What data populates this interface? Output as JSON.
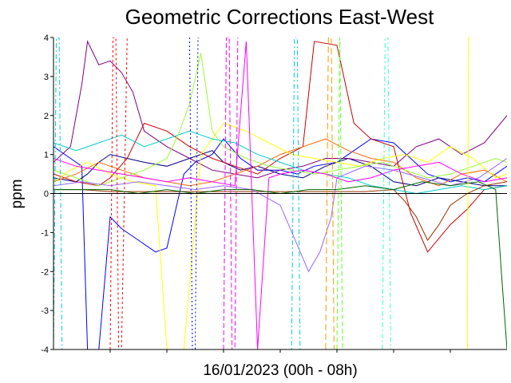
{
  "chart_data": {
    "type": "line",
    "title": "Geometric Corrections East-West",
    "xlabel": "16/01/2023 (00h - 08h)",
    "ylabel": "ppm",
    "ylim": [
      -4,
      4
    ],
    "xlim": [
      0,
      8
    ],
    "yticks": [
      "4",
      "3",
      "2",
      "1",
      "0",
      "-1",
      "-2",
      "-3",
      "-4"
    ],
    "ytick_values": [
      4,
      3,
      2,
      1,
      0,
      -1,
      -2,
      -3,
      -4
    ],
    "xticks_minor": [
      1,
      2,
      3,
      4,
      5,
      6,
      7
    ],
    "grid": false,
    "legend": "none",
    "series": [
      {
        "color": "#0000ff",
        "dash": "",
        "x": [
          0.0,
          0.3,
          0.5,
          0.6,
          0.8,
          1.0,
          1.2,
          1.5,
          1.8,
          2.0,
          2.3,
          2.5,
          2.8,
          3.0,
          3.3,
          3.6,
          4.0,
          4.3,
          4.6,
          5.0,
          5.3,
          5.6,
          6.0,
          6.3,
          6.6,
          7.0,
          7.3,
          7.6,
          8.0
        ],
        "y": [
          1.2,
          0.9,
          0.7,
          -4,
          -4,
          -0.6,
          -0.9,
          -1.2,
          -1.5,
          -1.4,
          0.5,
          0.8,
          1.0,
          1.4,
          0.9,
          0.6,
          0.6,
          0.5,
          0.7,
          0.8,
          1.1,
          1.4,
          1.3,
          0.9,
          0.5,
          0.3,
          0.4,
          0.3,
          0.7
        ]
      },
      {
        "color": "#000080",
        "dash": "",
        "x": [
          0.0,
          0.4,
          0.6,
          0.8,
          1.0,
          1.3,
          1.6,
          2.0,
          2.4,
          2.8,
          3.0,
          3.3,
          3.6,
          4.0,
          4.4,
          4.8,
          5.2,
          5.6,
          6.0,
          6.4,
          6.8,
          7.2,
          7.6,
          8.0
        ],
        "y": [
          0.4,
          0.3,
          0.5,
          0.8,
          1.0,
          0.9,
          0.8,
          0.7,
          0.9,
          1.1,
          0.8,
          0.6,
          0.7,
          0.5,
          0.4,
          0.7,
          0.9,
          0.7,
          0.3,
          0.2,
          0.4,
          0.3,
          0.2,
          0.2
        ]
      },
      {
        "color": "#800080",
        "dash": "",
        "x": [
          0.0,
          0.3,
          0.5,
          0.6,
          0.8,
          1.0,
          1.2,
          1.4,
          1.6,
          2.0,
          2.4,
          2.8,
          3.2,
          3.6,
          4.0,
          4.4,
          4.8,
          5.2,
          5.6,
          6.0,
          6.4,
          6.8,
          7.2,
          7.6,
          8.0
        ],
        "y": [
          0.8,
          1.2,
          2.8,
          3.9,
          3.3,
          3.4,
          3.1,
          2.6,
          1.6,
          1.2,
          0.9,
          0.6,
          0.5,
          0.4,
          0.6,
          0.7,
          0.9,
          0.9,
          0.8,
          0.7,
          1.2,
          1.4,
          1.0,
          1.3,
          2.0
        ]
      },
      {
        "color": "#cc0000",
        "dash": "",
        "x": [
          0.0,
          0.4,
          0.8,
          1.0,
          1.3,
          1.6,
          2.0,
          2.4,
          2.8,
          3.2,
          3.6,
          4.0,
          4.4,
          4.6,
          5.0,
          5.3,
          5.6,
          6.0,
          6.3,
          6.6,
          7.0,
          7.3,
          7.6,
          8.0
        ],
        "y": [
          0.5,
          0.3,
          0.2,
          0.4,
          0.9,
          1.8,
          1.6,
          1.2,
          0.9,
          0.7,
          0.5,
          0.9,
          1.2,
          3.9,
          3.8,
          1.8,
          1.4,
          1.2,
          -0.5,
          -1.5,
          -0.8,
          -0.4,
          0.1,
          0.2
        ]
      },
      {
        "color": "#ff6600",
        "dash": "",
        "x": [
          0.0,
          0.4,
          0.8,
          1.2,
          1.6,
          2.0,
          2.4,
          2.8,
          3.2,
          3.6,
          4.0,
          4.4,
          4.8,
          5.2,
          5.6,
          6.0,
          6.4,
          6.8,
          7.2,
          7.6,
          8.0
        ],
        "y": [
          0.3,
          0.5,
          0.8,
          0.6,
          0.4,
          0.3,
          0.2,
          0.3,
          0.5,
          0.7,
          1.0,
          1.2,
          1.4,
          1.1,
          0.9,
          0.8,
          0.4,
          0.2,
          0.5,
          0.6,
          0.3
        ]
      },
      {
        "color": "#ffff00",
        "dash": "",
        "x": [
          0.0,
          0.3,
          0.6,
          1.0,
          1.4,
          1.8,
          2.0,
          2.3,
          2.6,
          3.0,
          3.4,
          3.8,
          4.2,
          4.6,
          5.0,
          5.4,
          5.8,
          6.2,
          6.6,
          7.0,
          7.4,
          7.8,
          8.0
        ],
        "y": [
          0.3,
          0.6,
          0.8,
          0.5,
          0.3,
          0.2,
          -4,
          -4,
          1.0,
          1.8,
          1.6,
          1.3,
          1.0,
          0.9,
          0.8,
          0.7,
          0.9,
          1.0,
          0.8,
          1.2,
          0.9,
          0.4,
          0.5
        ]
      },
      {
        "color": "#00cccc",
        "dash": "",
        "x": [
          0.0,
          0.4,
          0.8,
          1.2,
          1.6,
          2.0,
          2.4,
          2.8,
          3.2,
          3.6,
          4.0,
          4.4,
          4.8,
          5.2,
          5.6,
          6.0,
          6.4,
          6.8,
          7.2,
          7.6,
          8.0
        ],
        "y": [
          1.3,
          1.1,
          1.3,
          1.5,
          1.2,
          1.4,
          1.6,
          1.4,
          1.3,
          1.0,
          0.8,
          0.6,
          0.5,
          0.4,
          0.2,
          0.1,
          0.0,
          0.1,
          0.2,
          0.1,
          0.2
        ]
      },
      {
        "color": "#99ff33",
        "dash": "",
        "x": [
          0.0,
          0.4,
          0.8,
          1.2,
          1.6,
          2.0,
          2.2,
          2.4,
          2.6,
          2.8,
          3.0,
          3.4,
          3.8,
          4.2,
          4.6,
          5.0,
          5.4,
          5.8,
          6.2,
          6.6,
          7.0,
          7.4,
          7.8,
          8.0
        ],
        "y": [
          0.6,
          0.4,
          0.2,
          0.4,
          0.6,
          0.9,
          1.5,
          2.3,
          3.6,
          1.6,
          1.2,
          0.9,
          0.7,
          0.6,
          0.5,
          0.6,
          0.7,
          0.8,
          0.6,
          0.4,
          0.5,
          0.7,
          0.9,
          0.8
        ]
      },
      {
        "color": "#ff00ff",
        "dash": "",
        "x": [
          0.0,
          0.4,
          0.8,
          1.2,
          1.6,
          2.0,
          2.4,
          2.8,
          3.2,
          3.4,
          3.6,
          3.8,
          4.0,
          4.4,
          4.8,
          5.2,
          5.6,
          6.0,
          6.4,
          6.8,
          7.2,
          7.6,
          8.0
        ],
        "y": [
          0.9,
          0.7,
          0.6,
          0.5,
          0.4,
          0.3,
          0.4,
          0.3,
          0.2,
          3.9,
          -4,
          0.4,
          0.5,
          0.6,
          0.5,
          0.3,
          0.4,
          0.6,
          0.7,
          0.8,
          0.5,
          0.3,
          0.4
        ]
      },
      {
        "color": "#993300",
        "dash": "",
        "x": [
          0.0,
          0.5,
          1.0,
          1.5,
          2.0,
          2.5,
          3.0,
          3.5,
          4.0,
          4.5,
          5.0,
          5.5,
          6.0,
          6.2,
          6.4,
          6.6,
          6.8,
          7.0,
          7.3,
          7.6,
          8.0
        ],
        "y": [
          0.1,
          0.1,
          0.05,
          0.05,
          0.05,
          0.05,
          0.05,
          0.05,
          0.05,
          0.05,
          0.05,
          0.05,
          0.1,
          -0.2,
          -0.6,
          -1.2,
          -0.8,
          -0.3,
          0.0,
          0.2,
          0.3
        ]
      },
      {
        "color": "#9966ff",
        "dash": "",
        "x": [
          0.0,
          0.5,
          1.0,
          1.5,
          2.0,
          2.5,
          3.0,
          3.5,
          4.0,
          4.5,
          4.7,
          4.9,
          5.0,
          5.5,
          6.0,
          6.5,
          7.0,
          7.5,
          8.0
        ],
        "y": [
          0.2,
          0.3,
          0.2,
          0.3,
          0.2,
          0.1,
          0.2,
          0.1,
          -0.3,
          -2.0,
          -1.5,
          -0.6,
          0.4,
          0.7,
          0.6,
          0.4,
          0.2,
          0.4,
          0.9
        ]
      },
      {
        "color": "#006600",
        "dash": "",
        "x": [
          0.0,
          0.5,
          1.0,
          1.5,
          2.0,
          2.5,
          3.0,
          3.5,
          4.0,
          4.5,
          5.0,
          5.5,
          6.0,
          6.5,
          7.0,
          7.5,
          7.8,
          7.9,
          8.0
        ],
        "y": [
          0.1,
          0.1,
          0.1,
          0.0,
          0.1,
          0.0,
          0.1,
          0.1,
          0.0,
          0.1,
          0.1,
          0.2,
          0.1,
          0.3,
          0.2,
          0.3,
          0.1,
          -2.0,
          -4
        ]
      },
      {
        "color": "#ff0000",
        "dash": "3,3",
        "x": [
          1.0,
          1.05,
          1.1,
          1.15,
          1.2,
          1.3
        ],
        "y": [
          -4,
          4,
          4,
          -4,
          -4,
          4
        ]
      },
      {
        "color": "#ff00ff",
        "dash": "6,3",
        "x": [
          3.0,
          3.05,
          3.1,
          3.15,
          3.2,
          3.25
        ],
        "y": [
          -4,
          4,
          4,
          -4,
          -4,
          4
        ]
      },
      {
        "color": "#00cccc",
        "dash": "6,3,2,3",
        "x": [
          0.0,
          0.05,
          0.1,
          0.15,
          4.2,
          4.25,
          4.3,
          4.35,
          4.4
        ],
        "y": [
          -4,
          4,
          4,
          -4,
          -4,
          4,
          4,
          -4,
          -4
        ]
      },
      {
        "color": "#ff9900",
        "dash": "8,4",
        "x": [
          4.8,
          4.85,
          4.9,
          4.95,
          5.0
        ],
        "y": [
          -4,
          4,
          4,
          -4,
          -4
        ]
      },
      {
        "color": "#0000cc",
        "dash": "2,3",
        "x": [
          2.4,
          2.45,
          2.5,
          2.55,
          2.6
        ],
        "y": [
          4,
          -4,
          -4,
          4,
          4
        ]
      },
      {
        "color": "#ffff00",
        "dash": "",
        "x": [
          7.3,
          7.32,
          7.34
        ],
        "y": [
          -4,
          4,
          4
        ]
      },
      {
        "color": "#33ffcc",
        "dash": "6,3,2,3",
        "x": [
          5.8,
          5.85,
          5.9,
          5.95
        ],
        "y": [
          -4,
          4,
          4,
          -4
        ]
      },
      {
        "color": "#66ff33",
        "dash": "6,3",
        "x": [
          5.0,
          5.05,
          5.1
        ],
        "y": [
          -4,
          4,
          -4
        ]
      }
    ]
  }
}
